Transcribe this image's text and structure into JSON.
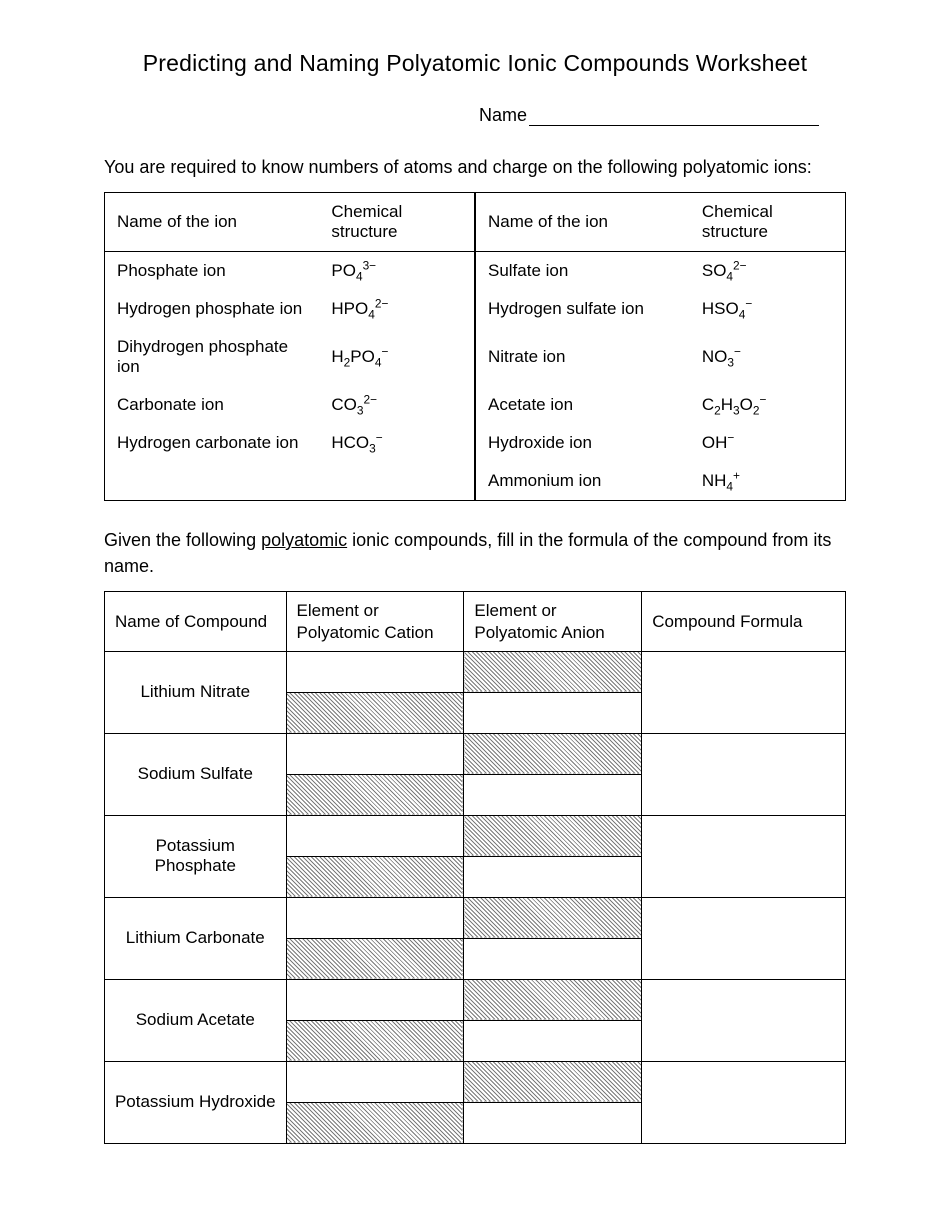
{
  "title": "Predicting and Naming Polyatomic Ionic Compounds Worksheet",
  "name_label": "Name",
  "instructions1": "You are required to know numbers of atoms and charge on the following polyatomic ions:",
  "ions_table": {
    "headers": {
      "name1": "Name of the ion",
      "struct1": "Chemical structure",
      "name2": "Name of the ion",
      "struct2": "Chemical structure"
    },
    "rows": [
      {
        "l_name": "Phosphate ion",
        "l_struct": "PO<sub>4</sub><sup>3−</sup>",
        "r_name": "Sulfate ion",
        "r_struct": "SO<sub>4</sub><sup>2−</sup>"
      },
      {
        "l_name": "Hydrogen phosphate ion",
        "l_struct": "HPO<sub>4</sub><sup>2−</sup>",
        "r_name": "Hydrogen sulfate ion",
        "r_struct": "HSO<sub>4</sub><sup>−</sup>"
      },
      {
        "l_name": "Dihydrogen phosphate ion",
        "l_struct": "H<sub>2</sub>PO<sub>4</sub><sup>−</sup>",
        "r_name": "Nitrate ion",
        "r_struct": "NO<sub>3</sub><sup>−</sup>"
      },
      {
        "l_name": "Carbonate ion",
        "l_struct": "CO<sub>3</sub><sup>2−</sup>",
        "r_name": "Acetate ion",
        "r_struct": "C<sub>2</sub>H<sub>3</sub>O<sub>2</sub><sup>−</sup>"
      },
      {
        "l_name": "Hydrogen carbonate ion",
        "l_struct": "HCO<sub>3</sub><sup>−</sup>",
        "r_name": "Hydroxide ion",
        "r_struct": "OH<sup>−</sup>"
      },
      {
        "l_name": "",
        "l_struct": "",
        "r_name": "Ammonium ion",
        "r_struct": "NH<sub>4</sub><sup>+</sup>"
      }
    ]
  },
  "instructions2_a": "Given the following ",
  "instructions2_u": "polyatomic",
  "instructions2_b": " ionic compounds, fill in the formula of the compound from its name.",
  "compounds_table": {
    "headers": {
      "name": "Name of Compound",
      "cation": "Element or Polyatomic Cation",
      "anion": "Element or Polyatomic Anion",
      "formula": "Compound Formula"
    },
    "rows": [
      {
        "name": "Lithium Nitrate"
      },
      {
        "name": "Sodium Sulfate"
      },
      {
        "name": "Potassium Phosphate"
      },
      {
        "name": "Lithium Carbonate"
      },
      {
        "name": "Sodium Acetate"
      },
      {
        "name": "Potassium Hydroxide"
      }
    ]
  }
}
